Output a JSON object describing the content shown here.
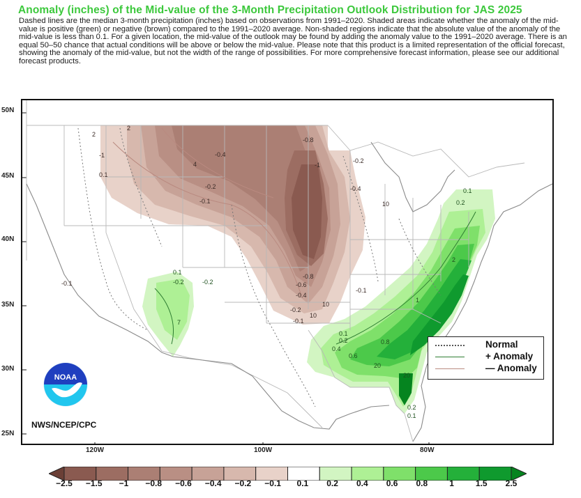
{
  "header": {
    "title": "Anomaly (inches) of the Mid-value of the 3-Month Precipitation Outlook Distribution for JAS 2025",
    "description": "Dashed lines are the median 3-month precipitation (inches) based on observations from 1991–2020. Shaded areas indicate whether the anomaly of the mid-value is positive (green) or negative (brown) compared to the 1991–2020 average. Non-shaded regions indicate that the absolute value of the anomaly of the mid-value is less than 0.1. For a given location, the mid-value of the outlook may be found by adding the anomaly value to the 1991–2020 average. There is an equal 50–50 chance that actual conditions will be above or below the mid-value. Please note that this product is a limited representation of the official forecast, showing the anomaly of the mid-value, but not the width of the range of possibilities. For more comprehensive forecast information, please see our additional forecast products."
  },
  "axes": {
    "lat_labels": [
      "50N",
      "45N",
      "40N",
      "35N",
      "30N",
      "25N"
    ],
    "lon_labels": [
      "120W",
      "100W",
      "80W"
    ]
  },
  "legend": {
    "normal": "Normal",
    "plus": "+ Anomaly",
    "minus": "— Anomaly"
  },
  "credit": "NWS/NCEP/CPC",
  "logo_text": "NOAA",
  "colorbar": {
    "labels": [
      "−2.5",
      "−1.5",
      "−1",
      "−0.8",
      "−0.6",
      "−0.4",
      "−0.2",
      "−0.1",
      "0.1",
      "0.2",
      "0.4",
      "0.6",
      "0.8",
      "1",
      "1.5",
      "2.5"
    ],
    "colors": [
      "#6b3f36",
      "#8a5a50",
      "#9c6d62",
      "#ab7f74",
      "#b98f84",
      "#c7a297",
      "#d7b8ad",
      "#e8d2c9",
      "#ffffff",
      "#d2f5c2",
      "#aef095",
      "#7fe06a",
      "#4cc94a",
      "#24b03a",
      "#0f9a2e",
      "#05841f"
    ]
  },
  "map_labels": {
    "brown": [
      "2",
      "2",
      "-1",
      "0.1",
      "-0.4",
      "4",
      "-0.2",
      "-0.1",
      "-0.8",
      "-1",
      "-0.8",
      "-0.6",
      "-0.4",
      "-0.2",
      "-0.1",
      "-0.1",
      "-0.4",
      "-0.2",
      "10",
      "10",
      "10",
      "-0.1"
    ],
    "green": [
      "0.1",
      "-0.2",
      "-0.2",
      "7",
      "0.1",
      "0.2",
      "0.1",
      "0.2",
      "0.4",
      "0.6",
      "0.8",
      "20",
      "20",
      "1",
      "2",
      "0.2",
      "0.1"
    ]
  },
  "colors": {
    "title": "#3cc83c",
    "normal_line": "#555555",
    "plus_line": "#2e7d32",
    "minus_line": "#b98a80"
  }
}
